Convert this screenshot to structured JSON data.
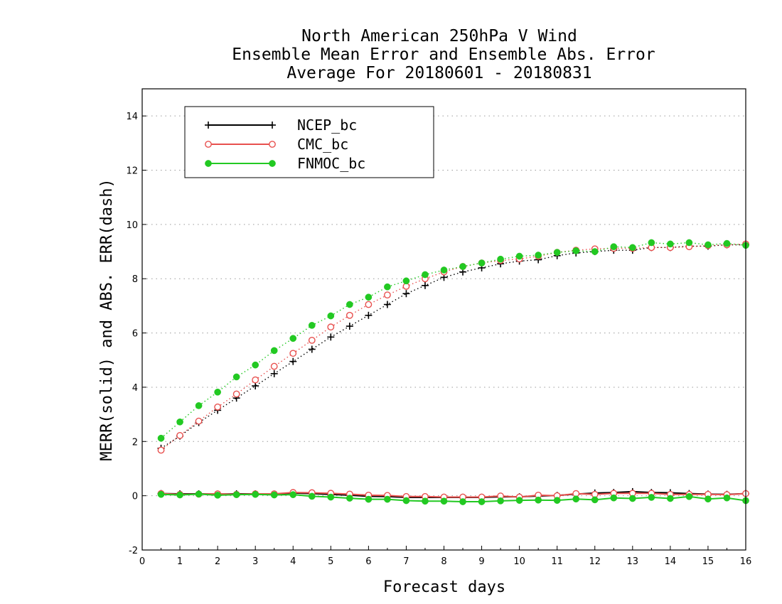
{
  "chart_data": {
    "type": "line",
    "title_lines": [
      "North American 250hPa V Wind",
      "Ensemble Mean Error and Ensemble Abs. Error",
      "Average For 20180601 - 20180831"
    ],
    "xlabel": "Forecast days",
    "ylabel": "MERR(solid) and ABS. ERR(dash)",
    "xlim": [
      0,
      16
    ],
    "ylim": [
      -2,
      15
    ],
    "xticks": [
      "0",
      "1",
      "2",
      "3",
      "4",
      "5",
      "6",
      "7",
      "8",
      "9",
      "10",
      "11",
      "12",
      "13",
      "14",
      "15",
      "16"
    ],
    "yticks": [
      "-2",
      "0",
      "2",
      "4",
      "6",
      "8",
      "10",
      "12",
      "14"
    ],
    "grid": "horizontal dotted",
    "legend_position": "top-left",
    "x": [
      0.5,
      1,
      1.5,
      2,
      2.5,
      3,
      3.5,
      4,
      4.5,
      5,
      5.5,
      6,
      6.5,
      7,
      7.5,
      8,
      8.5,
      9,
      9.5,
      10,
      10.5,
      11,
      11.5,
      12,
      12.5,
      13,
      13.5,
      14,
      14.5,
      15,
      15.5,
      16
    ],
    "series": [
      {
        "name": "NCEP_bc",
        "color": "#000000",
        "marker": "plus",
        "abs_err": [
          1.75,
          2.2,
          2.7,
          3.15,
          3.6,
          4.05,
          4.5,
          4.95,
          5.4,
          5.85,
          6.25,
          6.65,
          7.05,
          7.45,
          7.75,
          8.05,
          8.25,
          8.4,
          8.55,
          8.65,
          8.7,
          8.85,
          8.95,
          9.0,
          9.05,
          9.05,
          9.15,
          9.15,
          9.2,
          9.2,
          9.25,
          9.25
        ],
        "mean_err": [
          0.08,
          0.07,
          0.07,
          0.06,
          0.07,
          0.07,
          0.06,
          0.1,
          0.08,
          0.05,
          0.02,
          -0.02,
          -0.03,
          -0.06,
          -0.06,
          -0.06,
          -0.06,
          -0.06,
          -0.04,
          -0.04,
          -0.01,
          0.01,
          0.06,
          0.1,
          0.12,
          0.15,
          0.12,
          0.11,
          0.08,
          0.06,
          0.05,
          0.08
        ]
      },
      {
        "name": "CMC_bc",
        "color": "#e8504e",
        "marker": "open-circle",
        "abs_err": [
          1.68,
          2.22,
          2.75,
          3.27,
          3.75,
          4.27,
          4.77,
          5.25,
          5.73,
          6.22,
          6.65,
          7.05,
          7.4,
          7.72,
          8.0,
          8.25,
          8.45,
          8.58,
          8.67,
          8.73,
          8.83,
          8.97,
          9.05,
          9.1,
          9.12,
          9.12,
          9.15,
          9.15,
          9.18,
          9.22,
          9.25,
          9.28
        ],
        "mean_err": [
          0.08,
          0.05,
          0.06,
          0.07,
          0.05,
          0.07,
          0.07,
          0.12,
          0.11,
          0.09,
          0.06,
          0.02,
          0.01,
          -0.03,
          -0.03,
          -0.05,
          -0.05,
          -0.05,
          -0.01,
          -0.05,
          0.02,
          0.0,
          0.08,
          0.05,
          0.09,
          0.09,
          0.09,
          0.05,
          0.05,
          0.05,
          0.04,
          0.08
        ]
      },
      {
        "name": "FNMOC_bc",
        "color": "#22c922",
        "marker": "filled-circle",
        "abs_err": [
          2.12,
          2.72,
          3.32,
          3.82,
          4.38,
          4.82,
          5.35,
          5.8,
          6.28,
          6.63,
          7.05,
          7.32,
          7.7,
          7.92,
          8.15,
          8.32,
          8.45,
          8.58,
          8.72,
          8.83,
          8.87,
          8.97,
          9.03,
          9.0,
          9.18,
          9.15,
          9.33,
          9.28,
          9.33,
          9.25,
          9.3,
          9.23
        ],
        "mean_err": [
          0.05,
          0.03,
          0.06,
          0.02,
          0.04,
          0.05,
          0.03,
          0.04,
          -0.02,
          -0.05,
          -0.09,
          -0.13,
          -0.13,
          -0.18,
          -0.2,
          -0.2,
          -0.22,
          -0.22,
          -0.19,
          -0.17,
          -0.16,
          -0.17,
          -0.12,
          -0.15,
          -0.08,
          -0.1,
          -0.06,
          -0.1,
          -0.03,
          -0.12,
          -0.08,
          -0.18
        ]
      }
    ]
  }
}
